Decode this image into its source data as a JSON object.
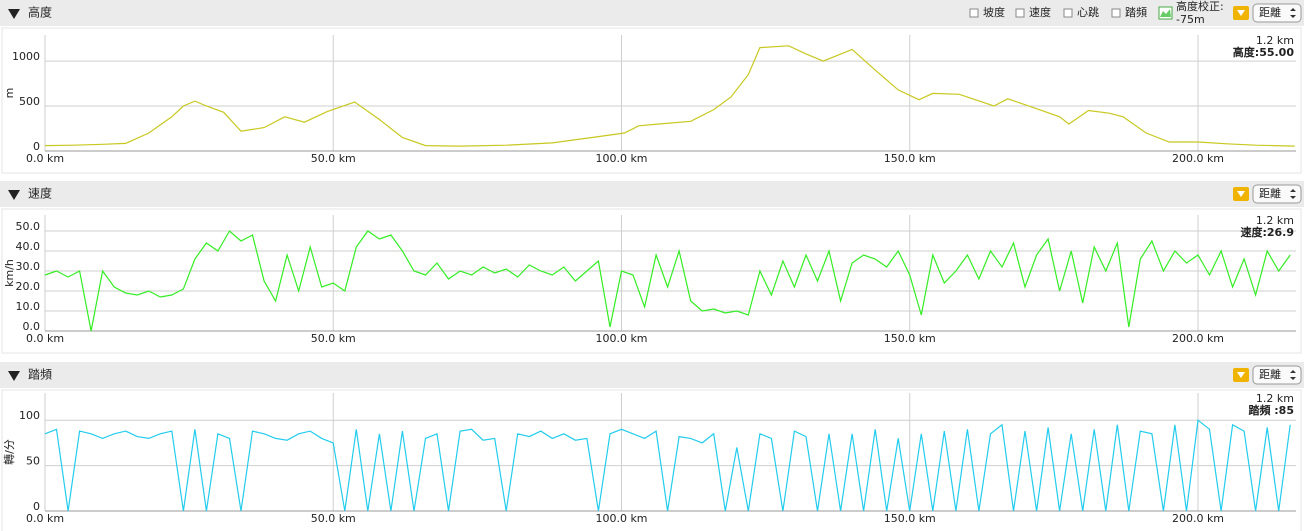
{
  "chart_data": [
    {
      "type": "line",
      "title": "高度",
      "y_label": "m",
      "color": "#c8c820",
      "x_mode": "距離",
      "x": [
        0,
        5,
        10,
        14,
        18,
        22,
        24,
        26,
        28,
        31,
        34,
        38,
        41.6,
        45,
        49,
        53.7,
        58,
        62,
        66,
        72,
        80,
        88,
        96,
        100.5,
        103,
        106.5,
        112,
        116,
        119,
        122,
        124,
        129,
        132,
        135,
        140,
        144,
        148,
        151.6,
        154,
        158.6,
        164.6,
        167,
        172,
        176,
        177.6,
        181,
        184.6,
        187,
        191,
        195,
        200,
        205,
        210,
        216.8
      ],
      "values": [
        60,
        65,
        75,
        85,
        200,
        380,
        500,
        555,
        500,
        430,
        220,
        260,
        380,
        320,
        440,
        545,
        350,
        150,
        60,
        55,
        65,
        90,
        160,
        200,
        280,
        300,
        330,
        460,
        600,
        850,
        1150,
        1170,
        1080,
        1000,
        1130,
        900,
        680,
        570,
        640,
        630,
        500,
        580,
        470,
        380,
        300,
        450,
        420,
        380,
        200,
        100,
        100,
        80,
        65,
        55
      ],
      "xlim": [
        0,
        217
      ],
      "xticks": [
        {
          "value": 0,
          "label": "0.0 km"
        },
        {
          "value": 50,
          "label": "50.0 km"
        },
        {
          "value": 100,
          "label": "100.0 km"
        },
        {
          "value": 150,
          "label": "150.0 km"
        },
        {
          "value": 200,
          "label": "200.0 km"
        }
      ],
      "ylim": [
        0,
        1290
      ],
      "yticks": [
        0,
        500,
        1000
      ],
      "grid": true,
      "cursor": {
        "position": "1.2 km",
        "reading": "高度:55.00"
      }
    },
    {
      "type": "line",
      "title": "速度",
      "y_label": "km/h",
      "color": "#33ee22",
      "x_mode": "距離",
      "x": [
        0,
        2,
        4,
        6,
        8,
        10,
        12,
        14,
        16,
        18,
        20,
        22,
        24,
        26,
        28,
        30,
        32,
        34,
        36,
        38,
        40,
        42,
        44,
        46,
        48,
        50,
        52,
        54,
        56,
        58,
        60,
        62,
        64,
        66,
        68,
        70,
        72,
        74,
        76,
        78,
        80,
        82,
        84,
        86,
        88,
        90,
        92,
        94,
        96,
        98,
        100,
        102,
        104,
        106,
        108,
        110,
        112,
        114,
        116,
        118,
        120,
        122,
        124,
        126,
        128,
        130,
        132,
        134,
        136,
        138,
        140,
        142,
        144,
        146,
        148,
        150,
        152,
        154,
        156,
        158,
        160,
        162,
        164,
        166,
        168,
        170,
        172,
        174,
        176,
        178,
        180,
        182,
        184,
        186,
        188,
        190,
        192,
        194,
        196,
        198,
        200,
        202,
        204,
        206,
        208,
        210,
        212,
        214,
        216
      ],
      "values": [
        28,
        30,
        27,
        30,
        0,
        30,
        22,
        19,
        18,
        20,
        17,
        18,
        21,
        36,
        44,
        40,
        50,
        45,
        48,
        25,
        15,
        38,
        20,
        42,
        22,
        24,
        20,
        42,
        50,
        46,
        48,
        40,
        30,
        28,
        34,
        26,
        30,
        28,
        32,
        29,
        31,
        27,
        33,
        30,
        28,
        32,
        25,
        30,
        35,
        2,
        30,
        28,
        12,
        38,
        22,
        40,
        15,
        10,
        11,
        9,
        10,
        8,
        30,
        18,
        35,
        22,
        38,
        25,
        40,
        15,
        34,
        38,
        36,
        32,
        40,
        28,
        8,
        38,
        24,
        30,
        38,
        26,
        40,
        32,
        44,
        22,
        38,
        46,
        20,
        40,
        14,
        42,
        30,
        44,
        2,
        36,
        45,
        30,
        40,
        34,
        38,
        28,
        40,
        22,
        36,
        18,
        40,
        30,
        38
      ],
      "xlim": [
        0,
        217
      ],
      "xticks": [
        {
          "value": 0,
          "label": "0.0 km"
        },
        {
          "value": 50,
          "label": "50.0 km"
        },
        {
          "value": 100,
          "label": "100.0 km"
        },
        {
          "value": 150,
          "label": "150.0 km"
        },
        {
          "value": 200,
          "label": "200.0 km"
        }
      ],
      "ylim": [
        0,
        58
      ],
      "yticks": [
        {
          "value": 0,
          "label": "0.0"
        },
        {
          "value": 10,
          "label": "10.0"
        },
        {
          "value": 20,
          "label": "20.0"
        },
        {
          "value": 30,
          "label": "30.0"
        },
        {
          "value": 40,
          "label": "40.0"
        },
        {
          "value": 50,
          "label": "50.0"
        }
      ],
      "grid": true,
      "cursor": {
        "position": "1.2 km",
        "reading": "速度:26.9"
      }
    },
    {
      "type": "line",
      "title": "踏頻",
      "y_label": "轉/分",
      "color": "#22ccee",
      "x_mode": "距離",
      "x": [
        0,
        2,
        4,
        6,
        8,
        10,
        12,
        14,
        16,
        18,
        20,
        22,
        24,
        26,
        28,
        30,
        32,
        34,
        36,
        38,
        40,
        42,
        44,
        46,
        48,
        50,
        52,
        54,
        56,
        58,
        60,
        62,
        64,
        66,
        68,
        70,
        72,
        74,
        76,
        78,
        80,
        82,
        84,
        86,
        88,
        90,
        92,
        94,
        96,
        98,
        100,
        102,
        104,
        106,
        108,
        110,
        112,
        114,
        116,
        118,
        120,
        122,
        124,
        126,
        128,
        130,
        132,
        134,
        136,
        138,
        140,
        142,
        144,
        146,
        148,
        150,
        152,
        154,
        156,
        158,
        160,
        162,
        164,
        166,
        168,
        170,
        172,
        174,
        176,
        178,
        180,
        182,
        184,
        186,
        188,
        190,
        192,
        194,
        196,
        198,
        200,
        202,
        204,
        206,
        208,
        210,
        212,
        214,
        216
      ],
      "values": [
        85,
        90,
        0,
        88,
        85,
        80,
        85,
        88,
        82,
        80,
        85,
        88,
        0,
        90,
        0,
        85,
        80,
        0,
        88,
        85,
        80,
        78,
        85,
        88,
        80,
        75,
        0,
        90,
        0,
        85,
        0,
        88,
        0,
        80,
        85,
        0,
        88,
        90,
        78,
        80,
        0,
        85,
        82,
        88,
        80,
        85,
        78,
        80,
        0,
        85,
        90,
        85,
        80,
        88,
        0,
        82,
        80,
        75,
        85,
        0,
        70,
        0,
        85,
        80,
        0,
        88,
        82,
        0,
        85,
        0,
        85,
        0,
        90,
        0,
        80,
        0,
        85,
        0,
        88,
        0,
        90,
        0,
        85,
        95,
        0,
        88,
        0,
        92,
        0,
        85,
        0,
        90,
        0,
        95,
        0,
        88,
        85,
        0,
        95,
        0,
        100,
        90,
        0,
        95,
        88,
        0,
        92,
        0,
        95
      ],
      "xlim": [
        0,
        217
      ],
      "xticks": [
        {
          "value": 0,
          "label": "0.0 km"
        },
        {
          "value": 50,
          "label": "50.0 km"
        },
        {
          "value": 100,
          "label": "100.0 km"
        },
        {
          "value": 150,
          "label": "150.0 km"
        },
        {
          "value": 200,
          "label": "200.0 km"
        }
      ],
      "ylim": [
        0,
        130
      ],
      "yticks": [
        0,
        50,
        100
      ],
      "grid": true,
      "cursor": {
        "position": "1.2 km",
        "reading": "踏頻 :85"
      }
    }
  ],
  "controls": {
    "toggles": [
      {
        "label": "坡度",
        "color": "#e02020"
      },
      {
        "label": "速度",
        "color": "#22cc22"
      },
      {
        "label": "心跳",
        "color": "#2233dd"
      },
      {
        "label": "踏頻",
        "color": "#dd22dd"
      }
    ],
    "offset_label": "高度校正:",
    "offset_value": "-75m"
  }
}
